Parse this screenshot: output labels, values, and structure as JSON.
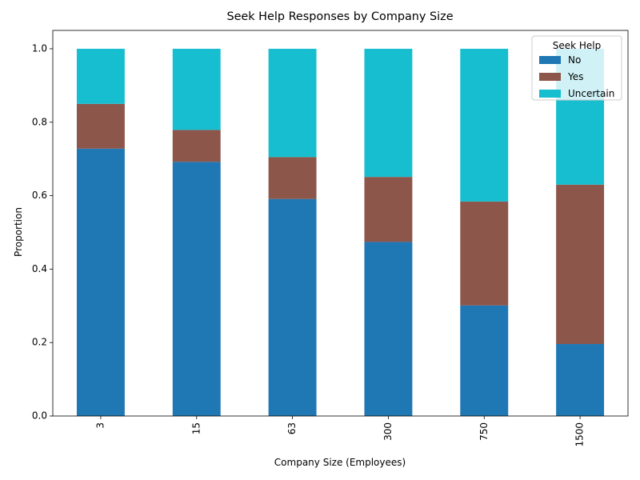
{
  "chart_data": {
    "type": "bar",
    "stacked": true,
    "title": "Seek Help Responses by Company Size",
    "xlabel": "Company Size (Employees)",
    "ylabel": "Proportion",
    "categories": [
      "3",
      "15",
      "63",
      "300",
      "750",
      "1500"
    ],
    "ylim": [
      0,
      1.05
    ],
    "yticks": [
      "0.0",
      "0.2",
      "0.4",
      "0.6",
      "0.8",
      "1.0"
    ],
    "series": [
      {
        "name": "No",
        "color": "#1f77b4",
        "values": [
          0.728,
          0.692,
          0.591,
          0.474,
          0.301,
          0.196
        ]
      },
      {
        "name": "Yes",
        "color": "#8c564b",
        "values": [
          0.122,
          0.087,
          0.114,
          0.177,
          0.283,
          0.434
        ]
      },
      {
        "name": "Uncertain",
        "color": "#17becf",
        "values": [
          0.15,
          0.221,
          0.295,
          0.349,
          0.416,
          0.37
        ]
      }
    ],
    "legend": {
      "title": "Seek Help",
      "position": "top-right"
    },
    "grid": false
  }
}
